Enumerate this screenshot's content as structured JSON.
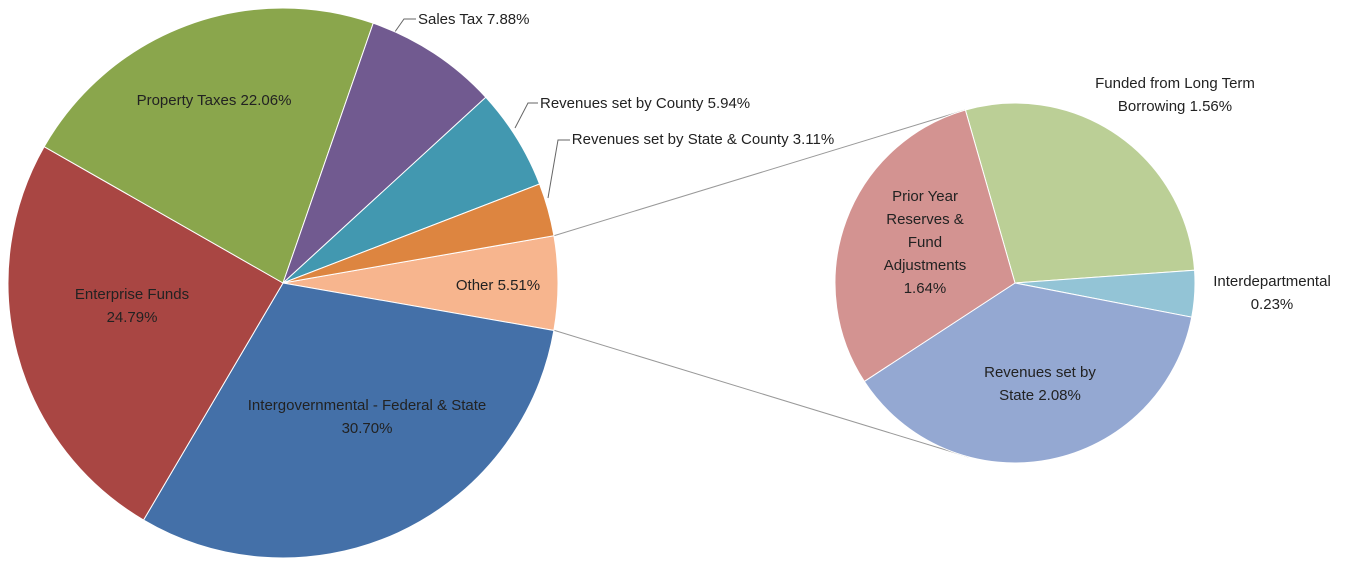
{
  "chart_data": [
    {
      "type": "pie",
      "categories": [
        "Other",
        "Intergovernmental - Federal & State",
        "Enterprise Funds",
        "Property Taxes",
        "Sales Tax",
        "Revenues set by County",
        "Revenues set by State & County"
      ],
      "values": [
        5.51,
        30.7,
        24.79,
        22.06,
        7.88,
        5.94,
        3.11
      ],
      "value_labels": [
        "5.51%",
        "30.70%",
        "24.79%",
        "22.06%",
        "7.88%",
        "5.94%",
        "3.11%"
      ],
      "colors": [
        "#f7b58e",
        "#4470a8",
        "#a94643",
        "#8aa64c",
        "#715a90",
        "#4298b0",
        "#dd8540"
      ]
    },
    {
      "type": "pie",
      "categories": [
        "Funded from Long Term Borrowing",
        "Interdepartmental",
        "Revenues set by State",
        "Prior Year Reserves & Fund Adjustments"
      ],
      "values": [
        1.56,
        0.23,
        2.08,
        1.64
      ],
      "value_labels": [
        "1.56%",
        "0.23%",
        "2.08%",
        "1.64%"
      ],
      "colors": [
        "#bbcf96",
        "#93c4d6",
        "#94a8d2",
        "#d39391"
      ]
    }
  ]
}
